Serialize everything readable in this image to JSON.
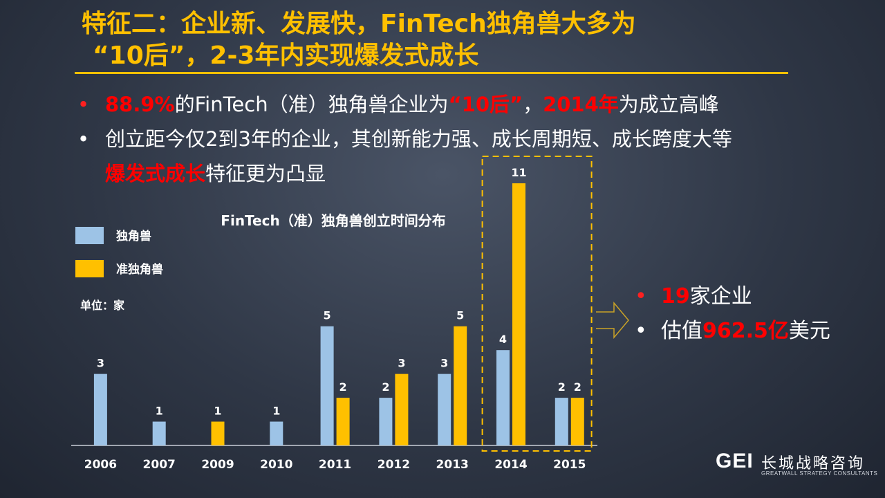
{
  "title": {
    "line1": "特征二：企业新、发展快，FinTech独角兽大多为",
    "line2": "“10后”，2-3年内实现爆发式成长"
  },
  "bullets": [
    {
      "parts": [
        {
          "text": "88.9%",
          "highlight": true
        },
        {
          "text": "的FinTech（准）独角兽企业为",
          "highlight": false
        },
        {
          "text": "“10后”",
          "highlight": true
        },
        {
          "text": "，",
          "highlight": false
        },
        {
          "text": "2014年",
          "highlight": true
        },
        {
          "text": "为成立高峰",
          "highlight": false
        }
      ]
    },
    {
      "parts": [
        {
          "text": "创立距今仅2到3年的企业，其创新能力强、成长周期短、成长跨度大等",
          "highlight": false
        }
      ]
    },
    {
      "continuation": true,
      "parts": [
        {
          "text": "爆发式成长",
          "highlight": true
        },
        {
          "text": "特征更为凸显",
          "highlight": false
        }
      ]
    }
  ],
  "chart_data": {
    "type": "bar",
    "title": "FinTech（准）独角兽创立时间分布",
    "unit_label": "单位：家",
    "categories": [
      "2006",
      "2007",
      "2009",
      "2010",
      "2011",
      "2012",
      "2013",
      "2014",
      "2015"
    ],
    "series": [
      {
        "name": "独角兽",
        "color": "#9dc3e6",
        "values": [
          3,
          1,
          null,
          1,
          5,
          2,
          3,
          4,
          2
        ]
      },
      {
        "name": "准独角兽",
        "color": "#ffc000",
        "values": [
          null,
          null,
          1,
          null,
          2,
          3,
          5,
          11,
          2
        ]
      }
    ],
    "ylim": [
      0,
      11
    ],
    "legend_placement": "left",
    "highlight_category": "2014",
    "grid": false
  },
  "callout": {
    "items": [
      {
        "parts": [
          {
            "text": "19",
            "highlight": true
          },
          {
            "text": "家企业",
            "highlight": false
          }
        ]
      },
      {
        "parts": [
          {
            "text": "估值",
            "highlight": false
          },
          {
            "text": "962.5亿",
            "highlight": true
          },
          {
            "text": "美元",
            "highlight": false
          }
        ]
      }
    ]
  },
  "logo": {
    "mark": "GEI",
    "name_cn": "长城战略咨询",
    "name_en": "GREATWALL STRATEGY CONSULTANTS"
  },
  "colors": {
    "title": "#ffc000",
    "highlight": "#ff0000",
    "unicorn": "#9dc3e6",
    "quasi_unicorn": "#ffc000"
  }
}
